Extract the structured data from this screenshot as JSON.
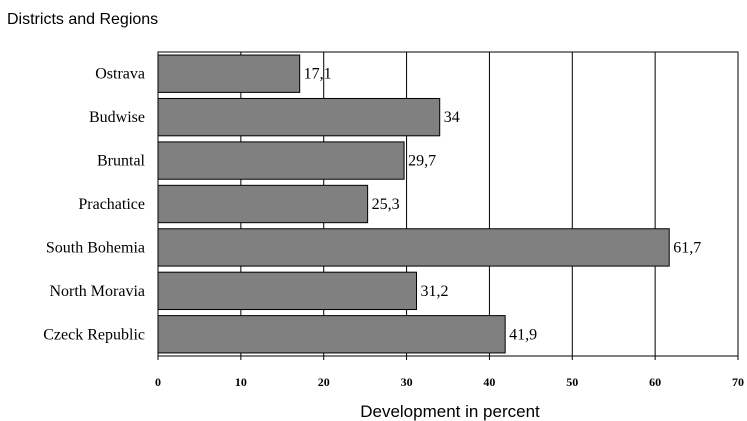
{
  "chart_data": {
    "type": "bar",
    "orientation": "horizontal",
    "title": "Districts and Regions",
    "xlabel": "Development in percent",
    "ylabel": "",
    "categories": [
      "Ostrava",
      "Budwise",
      "Bruntal",
      "Prachatice",
      "South Bohemia",
      "North Moravia",
      "Czeck Republic"
    ],
    "values": [
      17.1,
      34,
      29.7,
      25.3,
      61.7,
      31.2,
      41.9
    ],
    "value_labels": [
      "17,1",
      "34",
      "29,7",
      "25,3",
      "61,7",
      "31,2",
      "41,9"
    ],
    "xlim": [
      0,
      70
    ],
    "xticks": [
      0,
      10,
      20,
      30,
      40,
      50,
      60,
      70
    ],
    "xtick_labels": [
      "0",
      "10",
      "20",
      "30",
      "40",
      "50",
      "60",
      "70"
    ],
    "grid": "vertical",
    "legend": "none",
    "bar_color": "#808080",
    "bar_edge_color": "#000000"
  }
}
